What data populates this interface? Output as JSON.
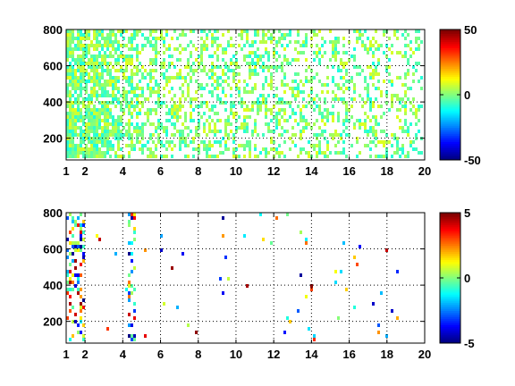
{
  "figure": {
    "background": "#ffffff",
    "axis_color": "#000000",
    "grid_color": "#000000",
    "colormap": "jet"
  },
  "chart_data": [
    {
      "type": "heatmap",
      "title": "",
      "xlabel": "",
      "ylabel": "",
      "xlim": [
        1,
        20
      ],
      "ylim": [
        80,
        800
      ],
      "xticks": [
        1,
        2,
        4,
        6,
        8,
        10,
        12,
        14,
        16,
        18,
        20
      ],
      "yticks": [
        200,
        400,
        600,
        800
      ],
      "grid": true,
      "colorbar": {
        "clim": [
          -50,
          50
        ],
        "ticks": [
          -50,
          0,
          50
        ]
      },
      "sparsity": "dense",
      "value_range": [
        -10,
        10
      ]
    },
    {
      "type": "heatmap",
      "title": "",
      "xlabel": "",
      "ylabel": "",
      "xlim": [
        1,
        20
      ],
      "ylim": [
        80,
        800
      ],
      "xticks": [
        1,
        2,
        4,
        6,
        8,
        10,
        12,
        14,
        16,
        18,
        20
      ],
      "yticks": [
        200,
        400,
        600,
        800
      ],
      "grid": true,
      "colorbar": {
        "clim": [
          -5,
          5
        ],
        "ticks": [
          -5,
          0,
          5
        ]
      },
      "sparsity": "sparse",
      "value_range": [
        -5,
        5
      ]
    }
  ]
}
